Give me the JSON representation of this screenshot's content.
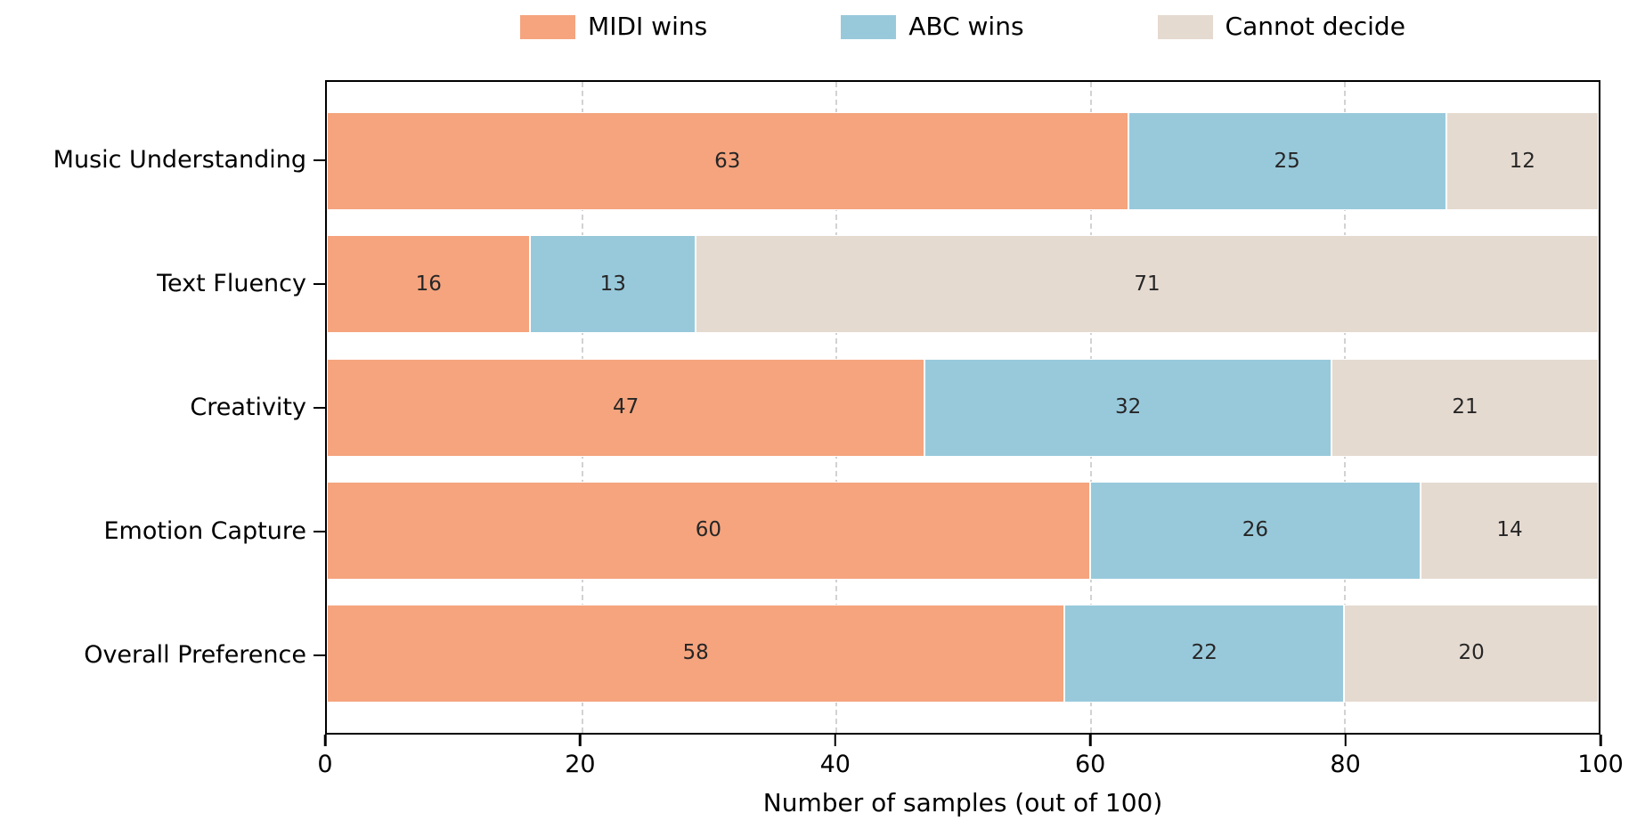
{
  "chart_data": {
    "type": "bar",
    "orientation": "horizontal-stacked",
    "categories": [
      "Music Understanding",
      "Text Fluency",
      "Creativity",
      "Emotion Capture",
      "Overall Preference"
    ],
    "series": [
      {
        "name": "MIDI wins",
        "color": "#F5A47E",
        "values": [
          63,
          16,
          47,
          60,
          58
        ]
      },
      {
        "name": "ABC wins",
        "color": "#98C9DB",
        "values": [
          25,
          13,
          32,
          26,
          22
        ]
      },
      {
        "name": "Cannot decide",
        "color": "#E5DAD0",
        "values": [
          12,
          71,
          21,
          14,
          20
        ]
      }
    ],
    "xlabel": "Number of samples (out of 100)",
    "x_ticks": [
      0,
      20,
      40,
      60,
      80,
      100
    ],
    "xlim": [
      0,
      100
    ],
    "grid": "vertical-dashed-interior",
    "gridline_color": "#d2d2d2",
    "legend_position": "top-center",
    "value_label_color": "#262626",
    "segment_edge_color": "#ffffff"
  }
}
